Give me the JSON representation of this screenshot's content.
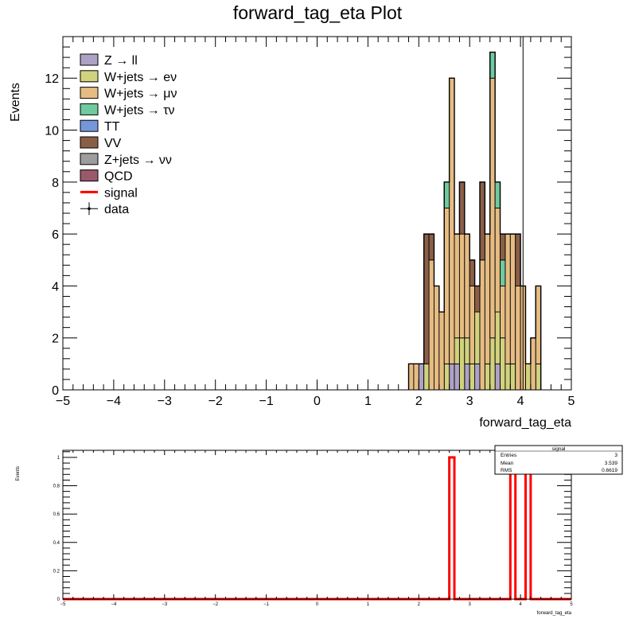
{
  "chart_data": [
    {
      "type": "bar",
      "stacked": true,
      "title": "forward_tag_eta Plot",
      "xlabel": "forward_tag_eta",
      "ylabel": "Events",
      "xlim": [
        -5,
        5
      ],
      "ylim": [
        0,
        13.6
      ],
      "xticks": [
        "−5",
        "−4",
        "−3",
        "−2",
        "−1",
        "0",
        "1",
        "2",
        "3",
        "4",
        "5"
      ],
      "yticks": [
        "0",
        "2",
        "4",
        "6",
        "8",
        "10",
        "12"
      ],
      "bin_width": 0.1,
      "legend_position": "top-left",
      "legend": [
        {
          "label": "Z → ll",
          "color": "#ada2c5",
          "kind": "box"
        },
        {
          "label": "W+jets → eν",
          "color": "#d1d27e",
          "kind": "box"
        },
        {
          "label": "W+jets → μν",
          "color": "#e6bc83",
          "kind": "box"
        },
        {
          "label": "W+jets → τν",
          "color": "#6fcaa0",
          "kind": "box"
        },
        {
          "label": "TT",
          "color": "#7597d9",
          "kind": "box"
        },
        {
          "label": "VV",
          "color": "#8a5f48",
          "kind": "box"
        },
        {
          "label": "Z+jets → νν",
          "color": "#9d9d9d",
          "kind": "box"
        },
        {
          "label": "QCD",
          "color": "#9b5a6b",
          "kind": "box"
        },
        {
          "label": "signal",
          "color": "#ff0000",
          "kind": "line"
        },
        {
          "label": "data",
          "color": "#000000",
          "kind": "marker"
        }
      ],
      "vertical_line_x": 4.05,
      "bins_x_start": [
        1.8,
        1.9,
        2.0,
        2.1,
        2.2,
        2.3,
        2.4,
        2.5,
        2.6,
        2.7,
        2.8,
        2.9,
        3.0,
        3.1,
        3.2,
        3.3,
        3.4,
        3.5,
        3.6,
        3.7,
        3.8,
        3.9,
        4.0,
        4.1,
        4.2,
        4.3
      ],
      "series": [
        {
          "name": "Z → ll",
          "color": "#ada2c5",
          "values": [
            0,
            0,
            1,
            0,
            0,
            0,
            0,
            0,
            1,
            1,
            0,
            1,
            0,
            1,
            0,
            0,
            0,
            1,
            0,
            0,
            0,
            0,
            0,
            0,
            0,
            0
          ]
        },
        {
          "name": "W+jets → eν",
          "color": "#d1d27e",
          "values": [
            0,
            0,
            0,
            1,
            0,
            0,
            0,
            1,
            0,
            1,
            2,
            1,
            1,
            2,
            0,
            1,
            2,
            2,
            2,
            1,
            1,
            0,
            0,
            1,
            0,
            1
          ]
        },
        {
          "name": "W+jets → μν",
          "color": "#e6bc83",
          "values": [
            1,
            1,
            0,
            0,
            5,
            4,
            3,
            6,
            11,
            4,
            4,
            4,
            3,
            0,
            5,
            5,
            10,
            4,
            2,
            5,
            5,
            4,
            4,
            0,
            2,
            3
          ]
        },
        {
          "name": "W+jets → τν",
          "color": "#6fcaa0",
          "values": [
            0,
            0,
            0,
            0,
            0,
            0,
            0,
            1,
            0,
            0,
            0,
            0,
            0,
            0,
            0,
            0,
            1,
            1,
            1,
            0,
            0,
            0,
            0,
            0,
            0,
            0
          ]
        },
        {
          "name": "VV",
          "color": "#8a5f48",
          "values": [
            0,
            0,
            0,
            5,
            1,
            0,
            0,
            0,
            0,
            0,
            2,
            0,
            1,
            1,
            3,
            0,
            0,
            0,
            1,
            0,
            0,
            2,
            0,
            0,
            0,
            0
          ]
        }
      ],
      "stats_box": {
        "title": "signal",
        "rows": [
          {
            "label": "Entries",
            "value": "3"
          },
          {
            "label": "Mean",
            "value": "3.539"
          },
          {
            "label": "RMS",
            "value": "0.6619"
          }
        ]
      }
    },
    {
      "type": "line",
      "xlabel": "forward_tag_eta",
      "ylabel": "Events",
      "xlim": [
        -5,
        5
      ],
      "ylim": [
        0,
        1.05
      ],
      "xticks": [
        "−5",
        "−4",
        "−3",
        "−2",
        "−1",
        "0",
        "1",
        "2",
        "3",
        "4",
        "5"
      ],
      "yticks": [
        "0",
        "0.2",
        "0.4",
        "0.6",
        "0.8",
        "1"
      ],
      "series": [
        {
          "name": "signal",
          "color": "#ff0000",
          "bins": [
            {
              "x0": 2.6,
              "x1": 2.7,
              "y": 1
            },
            {
              "x0": 3.8,
              "x1": 3.9,
              "y": 1
            },
            {
              "x0": 4.1,
              "x1": 4.2,
              "y": 1
            }
          ]
        }
      ]
    }
  ]
}
